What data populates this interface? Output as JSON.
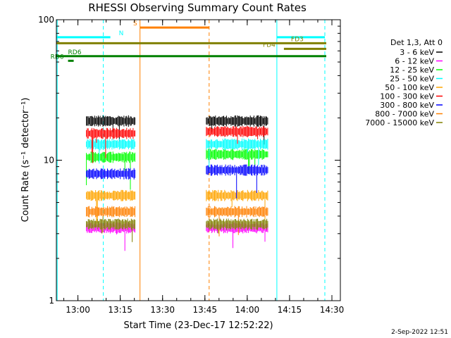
{
  "chart_data": {
    "type": "line",
    "title": "RHESSI Observing Summary Count Rates",
    "xlabel": "Start Time (23-Dec-17 12:52:22)",
    "ylabel": "Count Rate (s⁻¹ detector⁻¹)",
    "y_scale": "log",
    "ylim": [
      1,
      100
    ],
    "xlim": [
      "12:52:22",
      "14:33:00"
    ],
    "yticks": [
      {
        "value": 1,
        "label": "1"
      },
      {
        "value": 10,
        "label": "10"
      },
      {
        "value": 100,
        "label": "100"
      }
    ],
    "xticks": [
      {
        "value": "13:00",
        "label": "13:00"
      },
      {
        "value": "13:15",
        "label": "13:15"
      },
      {
        "value": "13:30",
        "label": "13:30"
      },
      {
        "value": "13:45",
        "label": "13:45"
      },
      {
        "value": "14:00",
        "label": "14:00"
      },
      {
        "value": "14:15",
        "label": "14:15"
      },
      {
        "value": "14:30",
        "label": "14:30"
      }
    ],
    "legend": {
      "placement": "right",
      "title": "Det 1,3, Att 0"
    },
    "series": [
      {
        "name": "3 - 6 keV",
        "color": "#000000",
        "segments": [
          {
            "start": "13:03:00",
            "end": "13:20:30",
            "level": 19
          },
          {
            "start": "13:45:30",
            "end": "14:07:30",
            "level": 19
          }
        ]
      },
      {
        "name": "6 - 12 keV",
        "color": "#ff00ff",
        "segments": [
          {
            "start": "13:03:00",
            "end": "13:20:30",
            "level": 3.3
          },
          {
            "start": "13:45:30",
            "end": "14:07:30",
            "level": 3.3
          }
        ]
      },
      {
        "name": "12 - 25 keV",
        "color": "#00ff00",
        "segments": [
          {
            "start": "13:03:00",
            "end": "13:20:30",
            "level": 10.5
          },
          {
            "start": "13:45:30",
            "end": "14:07:30",
            "level": 11
          }
        ]
      },
      {
        "name": "25 - 50 keV",
        "color": "#00ffff",
        "segments": [
          {
            "start": "13:03:00",
            "end": "13:20:30",
            "level": 13
          },
          {
            "start": "13:45:30",
            "end": "14:07:30",
            "level": 13
          }
        ]
      },
      {
        "name": "50 - 100 keV",
        "color": "#ffa500",
        "segments": [
          {
            "start": "13:03:00",
            "end": "13:20:30",
            "level": 5.6
          },
          {
            "start": "13:45:30",
            "end": "14:07:30",
            "level": 5.6
          }
        ]
      },
      {
        "name": "100 - 300 keV",
        "color": "#ff0000",
        "segments": [
          {
            "start": "13:03:00",
            "end": "13:20:30",
            "level": 15.5
          },
          {
            "start": "13:45:30",
            "end": "14:07:30",
            "level": 16
          }
        ]
      },
      {
        "name": "300 - 800 keV",
        "color": "#0000ff",
        "segments": [
          {
            "start": "13:03:00",
            "end": "13:20:30",
            "level": 8
          },
          {
            "start": "13:45:30",
            "end": "14:07:30",
            "level": 8.5
          }
        ]
      },
      {
        "name": "800 - 7000 keV",
        "color": "#ff8000",
        "segments": [
          {
            "start": "13:03:00",
            "end": "13:20:30",
            "level": 4.3
          },
          {
            "start": "13:45:30",
            "end": "14:07:30",
            "level": 4.3
          }
        ]
      },
      {
        "name": "7000 - 15000 keV",
        "color": "#808000",
        "segments": [
          {
            "start": "13:03:00",
            "end": "13:20:30",
            "level": 3.5
          },
          {
            "start": "13:45:30",
            "end": "14:07:30",
            "level": 3.5
          }
        ]
      }
    ],
    "flag_bars": [
      {
        "label": "N",
        "color": "#00ffff",
        "level": 75,
        "start": "12:52:22",
        "end": "13:11:30",
        "label_at": "13:13:30",
        "label_side": "right"
      },
      {
        "label": "N",
        "color": "#00ffff",
        "level": 75,
        "start": "14:10:30",
        "end": "14:27:30",
        "label_at": "",
        "label_side": "none"
      },
      {
        "label": "S",
        "color": "#ff8000",
        "level": 88,
        "start": "13:22:00",
        "end": "13:46:30",
        "label_at": "13:22:00",
        "label_side": "left"
      },
      {
        "label": "FD3",
        "color": "#808000",
        "level": 68,
        "start": "12:52:22",
        "end": "14:28:00",
        "label_at": "14:14:30",
        "label_side": "right"
      },
      {
        "label": "FD4",
        "color": "#808000",
        "level": 62,
        "start": "14:13:00",
        "end": "14:28:00",
        "label_at": "14:11:00",
        "label_side": "left"
      },
      {
        "label": "RD6",
        "color": "#008000",
        "level": 55,
        "start": "12:52:22",
        "end": "14:28:00",
        "label_at": "12:55:30",
        "label_side": "right"
      },
      {
        "label": "RD6",
        "color": "#008000",
        "level": 51,
        "start": "12:56:30",
        "end": "12:58:30",
        "label_at": "12:56:00",
        "label_side": "left"
      }
    ],
    "vertical_markers": [
      {
        "time": "12:52:40",
        "color": "#00ffff",
        "style": "solid"
      },
      {
        "time": "13:09:00",
        "color": "#00ffff",
        "style": "dashed"
      },
      {
        "time": "13:22:00",
        "color": "#ff8000",
        "style": "solid"
      },
      {
        "time": "13:46:30",
        "color": "#ff8000",
        "style": "dashed"
      },
      {
        "time": "14:10:30",
        "color": "#00ffff",
        "style": "solid"
      },
      {
        "time": "14:27:30",
        "color": "#00ffff",
        "style": "dashed"
      }
    ]
  },
  "footer": {
    "date": "2-Sep-2022 12:51"
  }
}
